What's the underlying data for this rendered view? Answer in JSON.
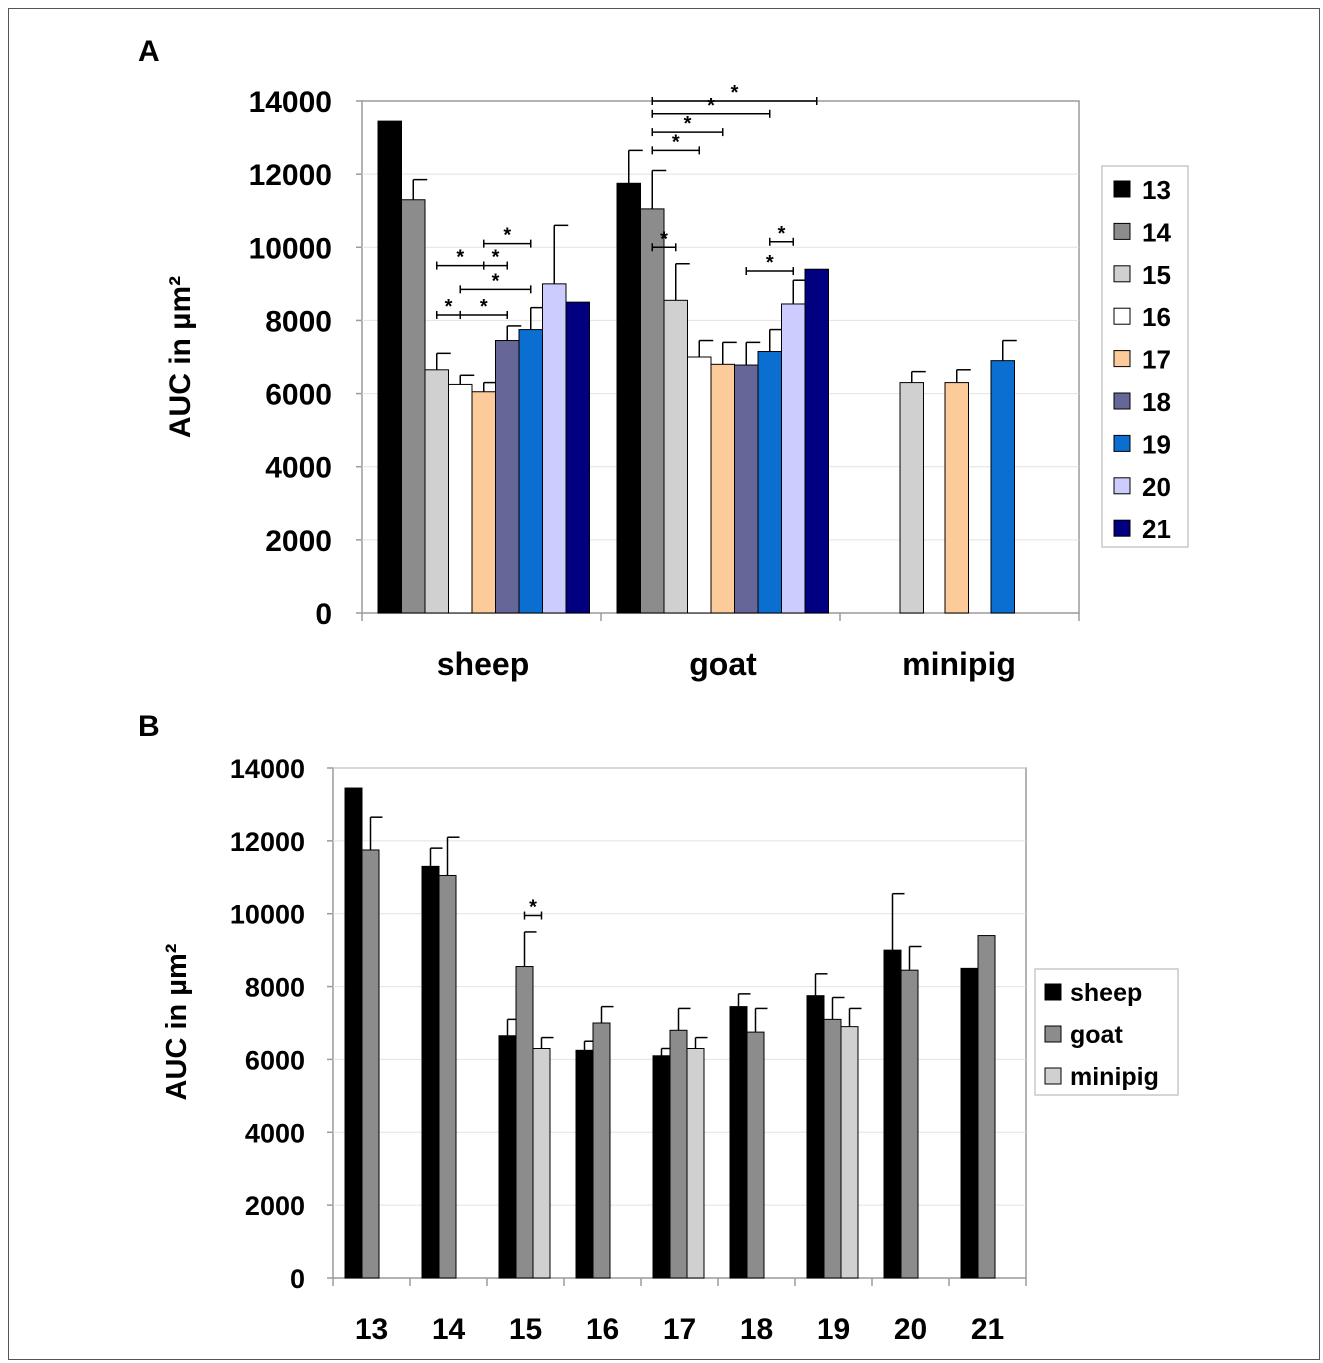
{
  "panels": {
    "a": {
      "letter": "A"
    },
    "b": {
      "letter": "B"
    }
  },
  "colors": {
    "13": "#000000",
    "14": "#8c8c8c",
    "15": "#d0d0d0",
    "16": "#ffffff",
    "17": "#fccb99",
    "18": "#666699",
    "19": "#0a6fd0",
    "20": "#ccccff",
    "21": "#000080",
    "sheep": "#000000",
    "goat": "#8c8c8c",
    "minipig": "#d0d0d0"
  },
  "chart_data": [
    {
      "type": "bar",
      "panel": "A",
      "ylabel": "AUC in µm²",
      "ylim": [
        0,
        14000
      ],
      "yticks": [
        "0",
        "2000",
        "4000",
        "6000",
        "8000",
        "10000",
        "12000",
        "14000"
      ],
      "grid": true,
      "legend_position": "right",
      "categories": [
        "sheep",
        "goat",
        "minipig"
      ],
      "series": [
        {
          "name": "13",
          "values": [
            13450,
            11750,
            null
          ],
          "errors": [
            0,
            900,
            null
          ]
        },
        {
          "name": "14",
          "values": [
            11300,
            11050,
            null
          ],
          "errors": [
            550,
            1050,
            null
          ]
        },
        {
          "name": "15",
          "values": [
            6650,
            8550,
            6300
          ],
          "errors": [
            450,
            1000,
            300
          ]
        },
        {
          "name": "16",
          "values": [
            6250,
            7000,
            null
          ],
          "errors": [
            250,
            450,
            null
          ]
        },
        {
          "name": "17",
          "values": [
            6050,
            6800,
            6300
          ],
          "errors": [
            250,
            600,
            350
          ]
        },
        {
          "name": "18",
          "values": [
            7450,
            6780,
            null
          ],
          "errors": [
            400,
            620,
            null
          ]
        },
        {
          "name": "19",
          "values": [
            7750,
            7150,
            6900
          ],
          "errors": [
            600,
            600,
            550
          ]
        },
        {
          "name": "20",
          "values": [
            9000,
            8450,
            null
          ],
          "errors": [
            1600,
            650,
            null
          ]
        },
        {
          "name": "21",
          "values": [
            8500,
            9400,
            null
          ],
          "errors": [
            0,
            0,
            null
          ]
        }
      ],
      "significance": [
        {
          "group": "sheep",
          "from": "15",
          "to": "17",
          "y": 9500,
          "label": "*"
        },
        {
          "group": "sheep",
          "from": "17",
          "to": "18",
          "y": 9500,
          "label": "*"
        },
        {
          "group": "sheep",
          "from": "17",
          "to": "19",
          "y": 10100,
          "label": "*"
        },
        {
          "group": "sheep",
          "from": "16",
          "to": "19",
          "y": 8850,
          "label": "*"
        },
        {
          "group": "sheep",
          "from": "15",
          "to": "16",
          "y": 8150,
          "label": "*"
        },
        {
          "group": "sheep",
          "from": "16",
          "to": "18",
          "y": 8150,
          "label": "*"
        },
        {
          "group": "goat",
          "from": "14",
          "to": "15",
          "y": 10000,
          "label": "*"
        },
        {
          "group": "goat",
          "from": "18",
          "to": "20",
          "y": 9350,
          "label": "*"
        },
        {
          "group": "goat",
          "from": "19",
          "to": "20",
          "y": 10150,
          "label": "*"
        },
        {
          "group": "goat",
          "from": "14",
          "to": "16",
          "y": 12650,
          "label": "*"
        },
        {
          "group": "goat",
          "from": "14",
          "to": "17",
          "y": 13150,
          "label": "*"
        },
        {
          "group": "goat",
          "from": "14",
          "to": "19",
          "y": 13650,
          "label": "*"
        },
        {
          "group": "goat",
          "from": "14",
          "to": "21",
          "y": 14000,
          "label": "*"
        }
      ]
    },
    {
      "type": "bar",
      "panel": "B",
      "ylabel": "AUC in µm²",
      "ylim": [
        0,
        14000
      ],
      "yticks": [
        "0",
        "2000",
        "4000",
        "6000",
        "8000",
        "10000",
        "12000",
        "14000"
      ],
      "grid": true,
      "legend_position": "right",
      "categories": [
        "13",
        "14",
        "15",
        "16",
        "17",
        "18",
        "19",
        "20",
        "21"
      ],
      "series": [
        {
          "name": "sheep",
          "values": [
            13450,
            11300,
            6650,
            6250,
            6100,
            7450,
            7750,
            9000,
            8500
          ],
          "errors": [
            0,
            500,
            450,
            250,
            200,
            350,
            600,
            1550,
            0
          ]
        },
        {
          "name": "goat",
          "values": [
            11750,
            11050,
            8550,
            7000,
            6800,
            6750,
            7100,
            8450,
            9400
          ],
          "errors": [
            900,
            1050,
            950,
            450,
            600,
            650,
            600,
            650,
            0
          ]
        },
        {
          "name": "minipig",
          "values": [
            null,
            null,
            6300,
            null,
            6300,
            null,
            6900,
            null,
            null
          ],
          "errors": [
            null,
            null,
            300,
            null,
            300,
            null,
            500,
            null,
            null
          ]
        }
      ],
      "significance": [
        {
          "group": "15",
          "from": "goat",
          "to": "minipig",
          "y": 9950,
          "label": "*"
        }
      ]
    }
  ]
}
